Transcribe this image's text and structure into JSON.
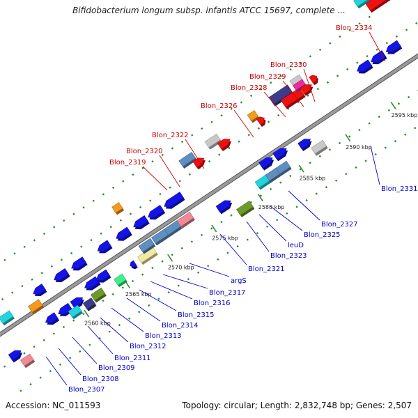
{
  "title": "Bifidobacterium longum subsp. infantis ATCC 15697, complete ...",
  "footer": {
    "accession": "Accession: NC_011593",
    "summary": "Topology: circular; Length: 2,832,748 bp; Genes: 2,507"
  },
  "colors": {
    "backbone": "#9a9a9a",
    "tick_dots": "#2e8b2e",
    "upper_label": "#cc0000",
    "lower_label": "#0000cc"
  },
  "tick_labels": [
    "2560 kbp",
    "2565 kbp",
    "2570 kbp",
    "2575 kbp",
    "2580 kbp",
    "2585 kbp",
    "2590 kbp",
    "2595 kbp"
  ],
  "genes_upper": [
    "Blon_2319",
    "Blon_2320",
    "Blon_2322",
    "Blon_2326",
    "Blon_2328",
    "Blon_2329",
    "Blon_2330",
    "Blon_2334"
  ],
  "genes_lower": [
    "Blon_2307",
    "Blon_2308",
    "Blon_2309",
    "Blon_2311",
    "Blon_2312",
    "Blon_2313",
    "Blon_2314",
    "Blon_2315",
    "Blon_2316",
    "Blon_2317",
    "argS",
    "Blon_2321",
    "Blon_2323",
    "leuD",
    "Blon_2325",
    "Blon_2327",
    "Blon_2331"
  ]
}
